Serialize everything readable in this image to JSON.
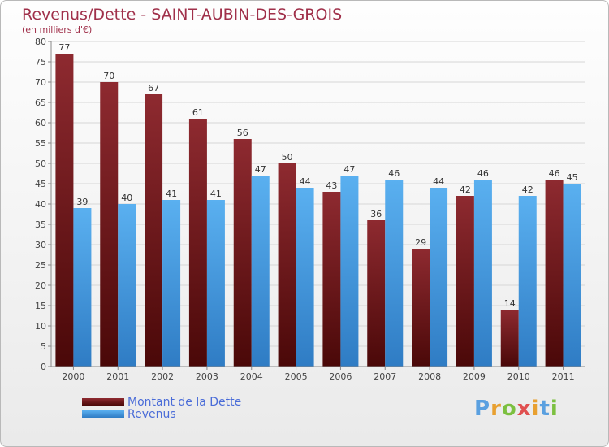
{
  "chart_data": {
    "type": "bar",
    "title": "Revenus/Dette - SAINT-AUBIN-DES-GROIS",
    "subtitle": "(en milliers d'€)",
    "xlabel": "",
    "ylabel": "",
    "ylim": [
      0,
      80
    ],
    "yticks": [
      0,
      5,
      10,
      15,
      20,
      25,
      30,
      35,
      40,
      45,
      50,
      55,
      60,
      65,
      70,
      75,
      80
    ],
    "categories": [
      "2000",
      "2001",
      "2002",
      "2003",
      "2004",
      "2005",
      "2006",
      "2007",
      "2008",
      "2009",
      "2010",
      "2011"
    ],
    "series": [
      {
        "name": "Montant de la Dette",
        "color": "#7a1a22",
        "values": [
          77,
          70,
          67,
          61,
          56,
          50,
          43,
          36,
          29,
          42,
          14,
          46
        ]
      },
      {
        "name": "Revenus",
        "color": "#3e9ee8",
        "values": [
          39,
          40,
          41,
          41,
          47,
          44,
          47,
          46,
          44,
          46,
          42,
          45
        ]
      }
    ],
    "grid": true,
    "legend": "bottom-left"
  },
  "logo": {
    "letters": [
      "P",
      "r",
      "o",
      "x",
      "i",
      "t",
      "i"
    ],
    "colors": [
      "#5aa0e0",
      "#e8a030",
      "#7cc040",
      "#e05050",
      "#e8a030",
      "#5aa0e0",
      "#7cc040"
    ]
  }
}
